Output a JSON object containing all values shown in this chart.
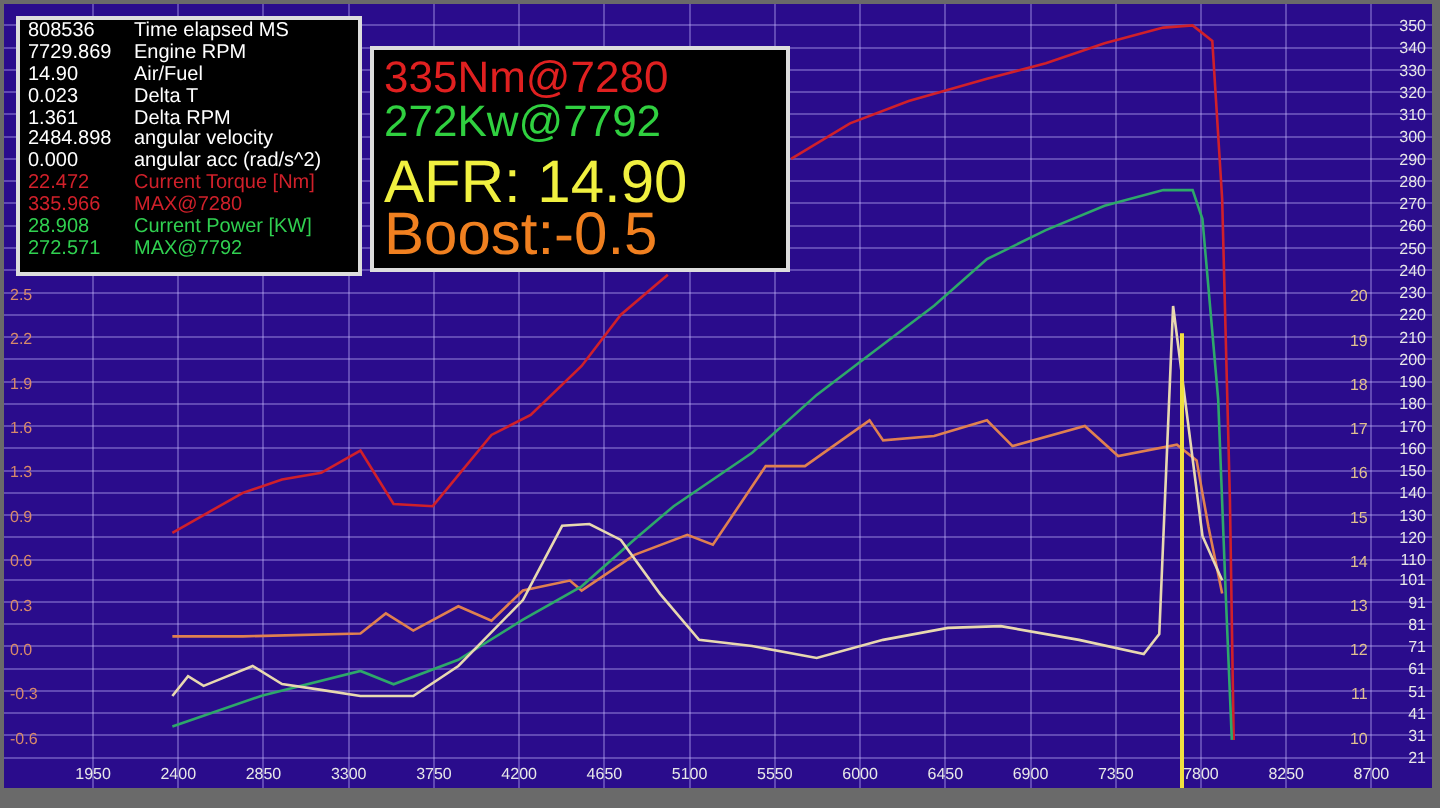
{
  "chart_data": {
    "type": "line",
    "grid": true,
    "marker": "none",
    "line_style": "solid",
    "xlim": [
      1480,
      9020
    ],
    "xticks": [
      1950,
      2400,
      2850,
      3300,
      3750,
      4200,
      4650,
      5100,
      5550,
      6000,
      6450,
      6900,
      7350,
      7800,
      8250,
      8700
    ],
    "ylim": [
      -0.95,
      4.53
    ],
    "yticks": [
      {
        "value": -0.6,
        "label": "-0.6"
      },
      {
        "value": -0.29,
        "label": "-0.3"
      },
      {
        "value": 0.02,
        "label": "0.0"
      },
      {
        "value": 0.33,
        "label": "0.3"
      },
      {
        "value": 0.64,
        "label": "0.6"
      },
      {
        "value": 0.95,
        "label": "0.9"
      },
      {
        "value": 1.26,
        "label": "1.3"
      },
      {
        "value": 1.57,
        "label": "1.6"
      },
      {
        "value": 1.88,
        "label": "1.9"
      },
      {
        "value": 2.19,
        "label": "2.2"
      },
      {
        "value": 2.5,
        "label": "2.5"
      }
    ],
    "y2lim": [
      7.4,
      359.6
    ],
    "y2ticks": [
      {
        "value": 21,
        "label": "21"
      },
      {
        "value": 31,
        "label": "31"
      },
      {
        "value": 41,
        "label": "41"
      },
      {
        "value": 51,
        "label": "51"
      },
      {
        "value": 61,
        "label": "61"
      },
      {
        "value": 71,
        "label": "71"
      },
      {
        "value": 81,
        "label": "81"
      },
      {
        "value": 91,
        "label": "91"
      },
      {
        "value": 101,
        "label": "101"
      },
      110,
      120,
      130,
      140,
      150,
      160,
      170,
      180,
      190,
      200,
      210,
      220,
      230,
      240,
      250,
      260,
      270,
      280,
      290,
      300,
      310,
      320,
      330,
      340,
      350
    ],
    "y3lim": [
      8.87,
      26.6
    ],
    "y3ticks": [
      10,
      11,
      12,
      13,
      14,
      15,
      16,
      17,
      18,
      19,
      20
    ],
    "series": [
      {
        "color": "#d0202a",
        "axis": "y2",
        "x": [
          2369,
          2534,
          2741,
          2948,
          3155,
          3362,
          3537,
          3744,
          4054,
          4261,
          4530,
          4737,
          4985,
          5223,
          5430,
          5636,
          5947,
          6257,
          6670,
          6981,
          7291,
          7601,
          7756,
          7860,
          7912,
          7953,
          7973
        ],
        "values": [
          122,
          130,
          140,
          146,
          149,
          159,
          135,
          134,
          166,
          175,
          197,
          220,
          238,
          null,
          null,
          290,
          306,
          316,
          326,
          333,
          342,
          349,
          350,
          343,
          272,
          137,
          29
        ]
      },
      {
        "color": "#2ea86a",
        "axis": "y2",
        "x": [
          2369,
          2845,
          3362,
          3537,
          3879,
          4220,
          4530,
          4809,
          5016,
          5430,
          5771,
          6050,
          6391,
          6670,
          6981,
          7291,
          7601,
          7756,
          7808,
          7891,
          7932,
          7963
        ],
        "values": [
          35,
          49,
          60,
          54,
          65,
          83,
          98,
          119,
          134,
          158,
          184,
          202,
          224,
          245,
          258,
          269,
          276,
          276,
          263,
          182,
          92,
          29
        ]
      },
      {
        "color": "#e08050",
        "axis": "y",
        "x": [
          2369,
          2741,
          3362,
          3496,
          3641,
          3879,
          4054,
          4220,
          4468,
          4530,
          4809,
          5088,
          5223,
          5502,
          5709,
          6050,
          6122,
          6391,
          6670,
          6805,
          7187,
          7363,
          7673,
          7777,
          7839,
          7912
        ],
        "values": [
          0.11,
          0.11,
          0.13,
          0.27,
          0.15,
          0.32,
          0.22,
          0.43,
          0.5,
          0.43,
          0.68,
          0.82,
          0.75,
          1.3,
          1.3,
          1.62,
          1.48,
          1.51,
          1.62,
          1.44,
          1.58,
          1.37,
          1.45,
          1.34,
          0.88,
          0.41
        ]
      },
      {
        "color": "#e8d8b0",
        "axis": "y3",
        "x": [
          2369,
          2452,
          2534,
          2638,
          2793,
          2948,
          3155,
          3362,
          3641,
          3879,
          4220,
          4427,
          4571,
          4737,
          4944,
          5150,
          5430,
          5771,
          6122,
          6464,
          6743,
          7156,
          7498,
          7580,
          7653,
          7808,
          7912
        ],
        "values": [
          10.95,
          11.4,
          11.18,
          11.36,
          11.63,
          11.22,
          11.09,
          10.95,
          10.95,
          11.63,
          13.12,
          14.8,
          14.84,
          14.48,
          13.26,
          12.22,
          12.08,
          11.81,
          12.22,
          12.49,
          12.53,
          12.22,
          11.9,
          12.35,
          19.77,
          14.57,
          13.57
        ]
      }
    ],
    "ref_lines": [
      {
        "axis": "x",
        "value": 7700,
        "color": "#f0e040"
      }
    ],
    "annotations": [
      "808536",
      "7729.869",
      "14.90",
      "0.023",
      "1.361",
      "2484.898",
      "0.000",
      "22.472",
      "335.966",
      "28.908",
      "272.571",
      "Time elapsed MS",
      "Engine RPM",
      "Air/Fuel",
      "Delta T",
      "Delta RPM",
      "angular velocity",
      "angular acc (rad/s^2)",
      "Current Torque [Nm]",
      "MAX@7280",
      "Current Power [KW]",
      "MAX@7792",
      "335Nm@7280",
      "272Kw@7792",
      "AFR: 14.90",
      "Boost:-0.5"
    ]
  }
}
